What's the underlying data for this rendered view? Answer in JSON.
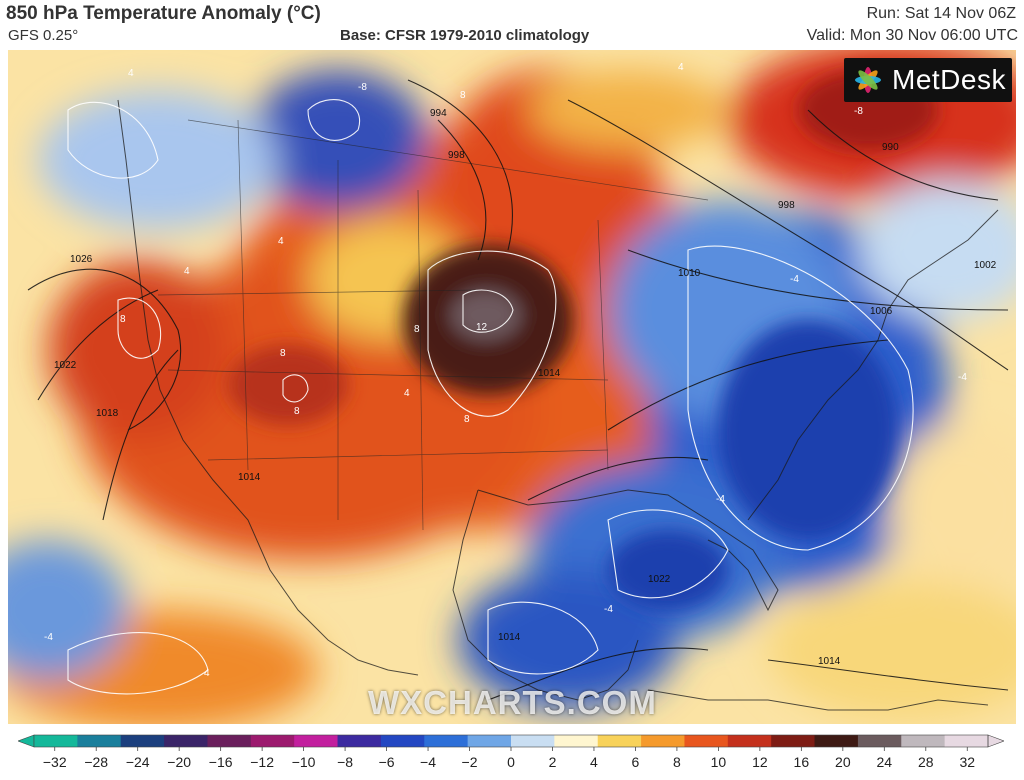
{
  "header": {
    "title": "850 hPa Temperature Anomaly (°C)",
    "model": "GFS 0.25°",
    "base": "Base: CFSR 1979-2010 climatology",
    "run": "Run: Sat 14 Nov 06Z",
    "valid": "Valid: Mon 30 Nov 06:00 UTC"
  },
  "brand": {
    "logo_text": "MetDesk",
    "watermark": "WXCHARTS.COM"
  },
  "colorbar": {
    "ticks": [
      "−32",
      "−28",
      "−24",
      "−20",
      "−16",
      "−12",
      "−10",
      "−8",
      "−6",
      "−4",
      "−2",
      "0",
      "2",
      "4",
      "6",
      "8",
      "10",
      "12",
      "16",
      "20",
      "24",
      "28",
      "32"
    ],
    "colors": [
      "#14b89a",
      "#1a7f9c",
      "#1b3f7e",
      "#3a2468",
      "#6a1f5c",
      "#9c1a6e",
      "#c21f9e",
      "#3c2aa0",
      "#2347c2",
      "#2d6fd8",
      "#6fa6e6",
      "#c9def2",
      "#fff6d0",
      "#f8d25a",
      "#f59a2c",
      "#e8561e",
      "#c4301c",
      "#7e1c14",
      "#3e1a14",
      "#6b5b5e",
      "#bfb8bd",
      "#e7d9e2"
    ],
    "colors_note": "diverging temperature-anomaly palette (cold teal/blue/purple → warm orange/red/brown/pink)"
  },
  "map": {
    "isobar_labels": [
      "1026",
      "1022",
      "1018",
      "1014",
      "1014",
      "1002",
      "994",
      "998",
      "990",
      "998",
      "1010",
      "1006",
      "1002",
      "1014",
      "1022",
      "1014"
    ],
    "isotherm_labels": [
      "4",
      "4",
      "8",
      "8",
      "8",
      "12",
      "8",
      "8",
      "4",
      "4",
      "4",
      "-4",
      "-4",
      "-4",
      "-8",
      "-8",
      "-4",
      "8",
      "4",
      "-4"
    ]
  }
}
